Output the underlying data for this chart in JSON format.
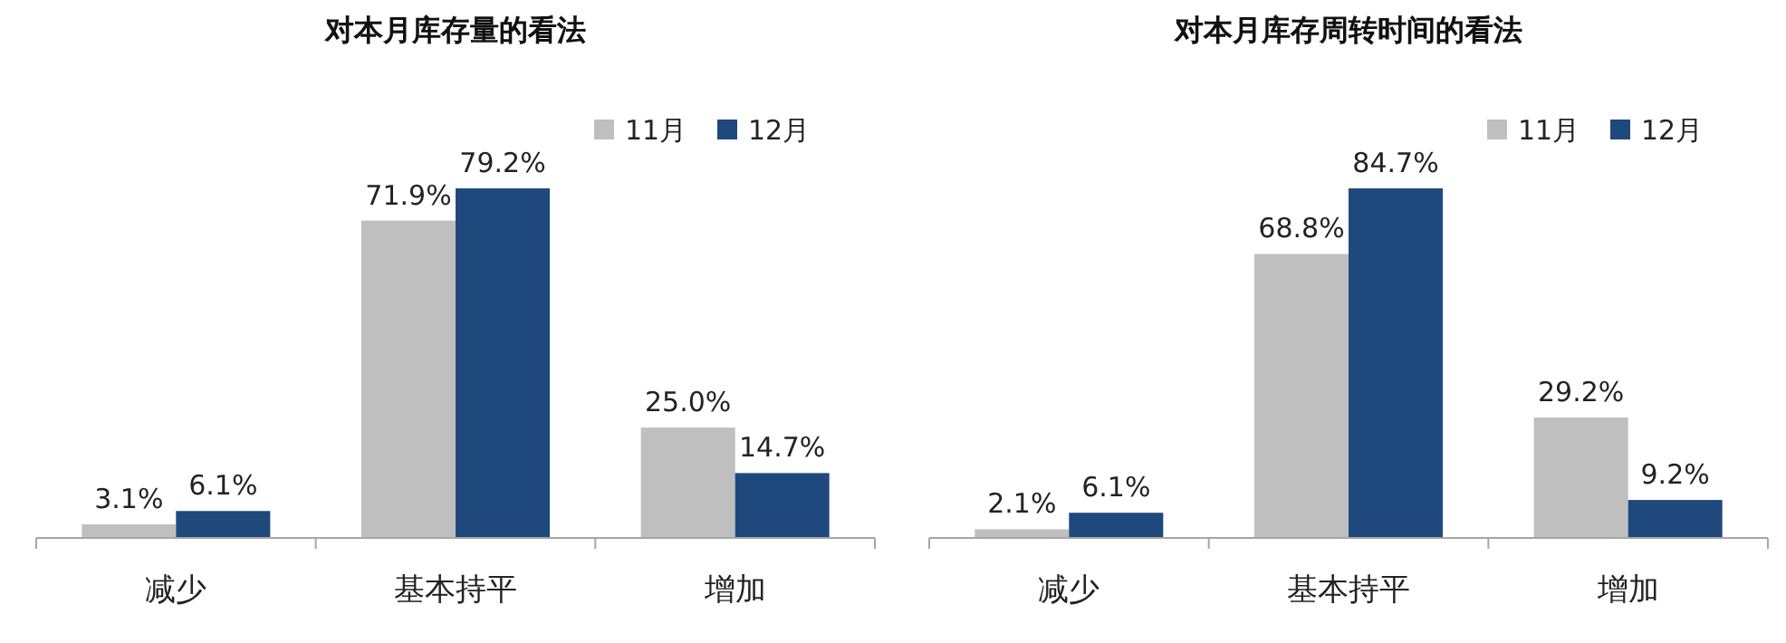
{
  "chart_data": [
    {
      "type": "bar",
      "title": "对本月库存量的看法",
      "categories": [
        "减少",
        "基本持平",
        "增加"
      ],
      "series": [
        {
          "name": "11月",
          "color": "#bfbfbf",
          "values": [
            3.1,
            71.9,
            25.0
          ],
          "value_labels": [
            "3.1%",
            "71.9%",
            "25.0%"
          ]
        },
        {
          "name": "12月",
          "color": "#1f497d",
          "values": [
            6.1,
            79.2,
            14.7
          ],
          "value_labels": [
            "6.1%",
            "79.2%",
            "14.7%"
          ]
        }
      ],
      "legend": "top right"
    },
    {
      "type": "bar",
      "title": "对本月库存周转时间的看法",
      "categories": [
        "减少",
        "基本持平",
        "增加"
      ],
      "series": [
        {
          "name": "11月",
          "color": "#bfbfbf",
          "values": [
            2.1,
            68.8,
            29.2
          ],
          "value_labels": [
            "2.1%",
            "68.8%",
            "29.2%"
          ]
        },
        {
          "name": "12月",
          "color": "#1f497d",
          "values": [
            6.1,
            84.7,
            9.2
          ],
          "value_labels": [
            "6.1%",
            "84.7%",
            "9.2%"
          ]
        }
      ],
      "legend": "top right"
    }
  ]
}
